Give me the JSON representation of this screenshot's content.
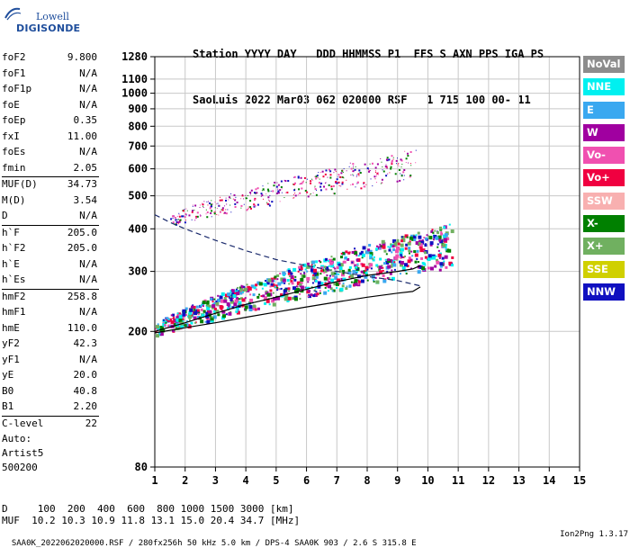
{
  "logo": {
    "line1": "Lowell",
    "line2": "DIGISONDE"
  },
  "header": {
    "line1": "Station YYYY DAY   DDD HHMMSS P1  FFS S AXN PPS IGA PS",
    "line2": "SaoLuis 2022 Mar03 062 020000 RSF   1 715 100 00- 11"
  },
  "params": {
    "group1": [
      {
        "k": "foF2",
        "v": "9.800"
      },
      {
        "k": "foF1",
        "v": "N/A"
      },
      {
        "k": "foF1p",
        "v": "N/A"
      },
      {
        "k": "foE",
        "v": "N/A"
      },
      {
        "k": "foEp",
        "v": "0.35"
      },
      {
        "k": "fxI",
        "v": "11.00"
      },
      {
        "k": "foEs",
        "v": "N/A"
      },
      {
        "k": "fmin",
        "v": "2.05"
      }
    ],
    "group2": [
      {
        "k": "MUF(D)",
        "v": "34.73"
      },
      {
        "k": "M(D)",
        "v": "3.54"
      },
      {
        "k": "D",
        "v": "N/A"
      }
    ],
    "group3": [
      {
        "k": "h`F",
        "v": "205.0"
      },
      {
        "k": "h`F2",
        "v": "205.0"
      },
      {
        "k": "h`E",
        "v": "N/A"
      },
      {
        "k": "h`Es",
        "v": "N/A"
      }
    ],
    "group4": [
      {
        "k": "hmF2",
        "v": "258.8"
      },
      {
        "k": "hmF1",
        "v": "N/A"
      },
      {
        "k": "hmE",
        "v": "110.0"
      },
      {
        "k": "yF2",
        "v": "42.3"
      },
      {
        "k": "yF1",
        "v": "N/A"
      },
      {
        "k": "yE",
        "v": "20.0"
      },
      {
        "k": "B0",
        "v": "40.8"
      },
      {
        "k": "B1",
        "v": "2.20"
      }
    ],
    "group5": [
      {
        "k": "C-level",
        "v": "22"
      }
    ]
  },
  "auto": [
    "Auto:",
    "Artist5",
    "500200"
  ],
  "legend": [
    {
      "label": "NoVal",
      "color": "#8c8c8c"
    },
    {
      "label": "NNE",
      "color": "#00f0f0"
    },
    {
      "label": "E",
      "color": "#3aa8f0"
    },
    {
      "label": "W",
      "color": "#a000a0"
    },
    {
      "label": "Vo-",
      "color": "#f050b0"
    },
    {
      "label": "Vo+",
      "color": "#f00040"
    },
    {
      "label": "SSW",
      "color": "#f8b0b0"
    },
    {
      "label": "X-",
      "color": "#008000"
    },
    {
      "label": "X+",
      "color": "#70b060"
    },
    {
      "label": "SSE",
      "color": "#d0d000"
    },
    {
      "label": "NNW",
      "color": "#1010c0"
    }
  ],
  "bottom": {
    "line1": "D     100  200  400  600  800 1000 1500 3000 [km]",
    "line2": "MUF  10.2 10.3 10.9 11.8 13.1 15.0 20.4 34.7 [MHz]"
  },
  "footer": {
    "left": "SAA0K_2022062020000.RSF / 280fx256h 50 kHz 5.0 km / DPS-4 SAA0K 903 / 2.6 S 315.8 E",
    "right": "Ion2Png 1.3.17"
  },
  "chart_data": {
    "type": "scatter",
    "title": "",
    "xlabel": "",
    "ylabel": "",
    "xlim": [
      1,
      15
    ],
    "ylim": [
      80,
      1280
    ],
    "yscale": "log",
    "xticks": [
      1,
      2,
      3,
      4,
      5,
      6,
      7,
      8,
      9,
      10,
      11,
      12,
      13,
      14,
      15
    ],
    "yticks": [
      80,
      200,
      300,
      400,
      500,
      600,
      700,
      800,
      900,
      1000,
      1100,
      1280
    ],
    "grid": true,
    "legend_position": "right",
    "series": [
      {
        "kind": "profile_line",
        "style": "solid",
        "color": "#000000",
        "points": [
          [
            1.0,
            198
          ],
          [
            2.0,
            205
          ],
          [
            3.0,
            212
          ],
          [
            4.0,
            220
          ],
          [
            5.0,
            228
          ],
          [
            6.0,
            236
          ],
          [
            7.0,
            244
          ],
          [
            8.0,
            252
          ],
          [
            9.0,
            259
          ],
          [
            9.5,
            262
          ],
          [
            9.75,
            270
          ]
        ]
      },
      {
        "kind": "ordinary_trace_model",
        "style": "solid",
        "color": "#000000",
        "points": [
          [
            1.0,
            200
          ],
          [
            2.0,
            212
          ],
          [
            3.0,
            226
          ],
          [
            4.0,
            240
          ],
          [
            5.0,
            252
          ],
          [
            6.0,
            266
          ],
          [
            7.0,
            280
          ],
          [
            8.0,
            292
          ],
          [
            9.0,
            300
          ],
          [
            9.5,
            305
          ],
          [
            9.75,
            312
          ]
        ]
      },
      {
        "kind": "profile_line",
        "style": "dashed",
        "color": "#1a2a6c",
        "points": [
          [
            1.0,
            440
          ],
          [
            1.5,
            418
          ],
          [
            2.0,
            400
          ],
          [
            3.0,
            370
          ],
          [
            4.0,
            345
          ],
          [
            5.0,
            325
          ],
          [
            6.0,
            312
          ],
          [
            7.0,
            300
          ],
          [
            8.0,
            290
          ],
          [
            9.0,
            282
          ],
          [
            9.75,
            272
          ]
        ]
      },
      {
        "kind": "echo_band",
        "name": "F-trace",
        "x": [
          1.0,
          10.8
        ],
        "y_start": [
          195,
          215
        ],
        "y_end": [
          310,
          420
        ],
        "colors": [
          "#1010c0",
          "#f00040",
          "#008000",
          "#f050b0",
          "#a000a0",
          "#70b060",
          "#3aa8f0",
          "#00f0f0"
        ]
      },
      {
        "kind": "echo_band",
        "name": "Multi-hop trace",
        "x": [
          1.5,
          9.6
        ],
        "y_start": [
          410,
          450
        ],
        "y_end": [
          560,
          690
        ],
        "colors": [
          "#a000a0",
          "#f050b0",
          "#f00040",
          "#008000",
          "#1010c0"
        ]
      }
    ]
  }
}
